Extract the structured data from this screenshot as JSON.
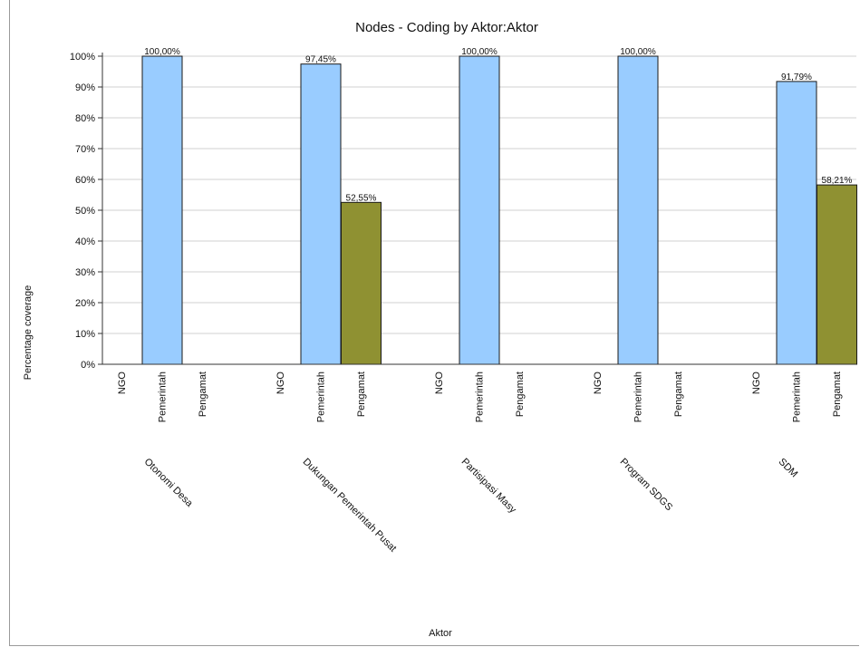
{
  "chart_data": {
    "type": "bar",
    "title": "Nodes - Coding by Aktor:Aktor",
    "xlabel": "Aktor",
    "ylabel": "Percentage coverage",
    "ylim": [
      0,
      100
    ],
    "yticks": [
      "0%",
      "10%",
      "20%",
      "30%",
      "40%",
      "50%",
      "60%",
      "70%",
      "80%",
      "90%",
      "100%"
    ],
    "grid": true,
    "groups": [
      "Otonomi Desa",
      "Dukungan Pemerintah Pusat",
      "Partisipasi Masy",
      "Program SDGS",
      "SDM"
    ],
    "categories": [
      "NGO",
      "Pemerintah",
      "Pengamat"
    ],
    "values": [
      [
        0,
        100,
        0
      ],
      [
        0,
        97.45,
        52.55
      ],
      [
        0,
        100,
        0
      ],
      [
        0,
        100,
        0
      ],
      [
        0,
        91.79,
        58.21
      ]
    ],
    "value_labels": [
      [
        "",
        "100,00%",
        ""
      ],
      [
        "",
        "97,45%",
        "52,55%"
      ],
      [
        "",
        "100,00%",
        ""
      ],
      [
        "",
        "100,00%",
        ""
      ],
      [
        "",
        "91,79%",
        "58,21%"
      ]
    ],
    "colors": {
      "NGO": "#99ccff",
      "Pemerintah": "#99ccff",
      "Pengamat": "#8f9132",
      "bar_outline": "#1a1a1a",
      "grid": "#d0d0d0"
    }
  }
}
